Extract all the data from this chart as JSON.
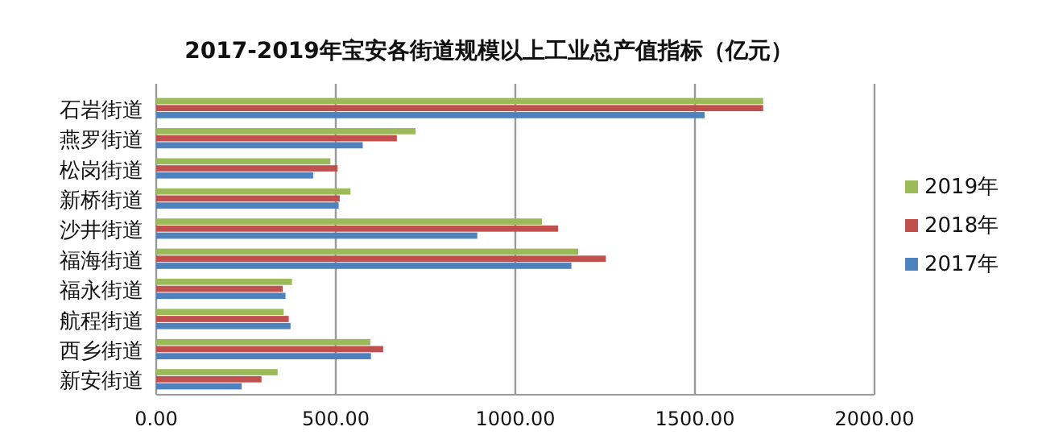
{
  "chart_data": {
    "type": "bar",
    "orientation": "horizontal",
    "title": "2017-2019年宝安各街道规模以上工业总产值指标（亿元）",
    "categories": [
      "石岩街道",
      "燕罗街道",
      "松岗街道",
      "新桥街道",
      "沙井街道",
      "福海街道",
      "福永街道",
      "航程街道",
      "西乡街道",
      "新安街道"
    ],
    "series": [
      {
        "name": "2019年",
        "color": "#9bbb59",
        "values": [
          1690,
          722,
          485,
          541,
          1074,
          1175,
          378,
          355,
          596,
          338
        ]
      },
      {
        "name": "2018年",
        "color": "#c0504d",
        "values": [
          1690,
          670,
          505,
          511,
          1119,
          1252,
          352,
          369,
          632,
          293
        ]
      },
      {
        "name": "2017年",
        "color": "#4f81bd",
        "values": [
          1527,
          575,
          437,
          508,
          894,
          1156,
          360,
          374,
          598,
          238
        ]
      }
    ],
    "xlim": [
      0,
      2000
    ],
    "xticks": [
      {
        "value": 0,
        "label": "0.00"
      },
      {
        "value": 500,
        "label": "500.00"
      },
      {
        "value": 1000,
        "label": "1000.00"
      },
      {
        "value": 1500,
        "label": "1500.00"
      },
      {
        "value": 2000,
        "label": "2000.00"
      }
    ],
    "grid": "x",
    "legend": "right"
  }
}
